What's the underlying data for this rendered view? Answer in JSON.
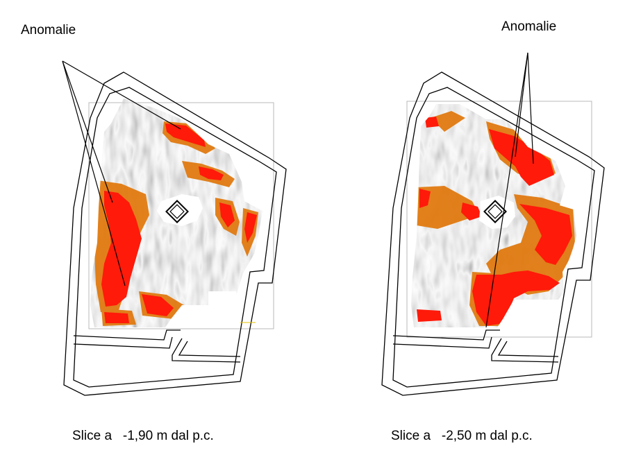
{
  "panels": [
    {
      "annotation": "Anomalie",
      "caption": "Slice a   -1,90 m dal p.c."
    },
    {
      "annotation": "Anomalie",
      "caption": "Slice a   -2,50 m dal p.c."
    }
  ],
  "colors": {
    "anomaly_red": "#ff1a0a",
    "anomaly_orange": "#e07a10",
    "background_dark": "#3a3a3a",
    "background_light": "#bdbdbd"
  }
}
